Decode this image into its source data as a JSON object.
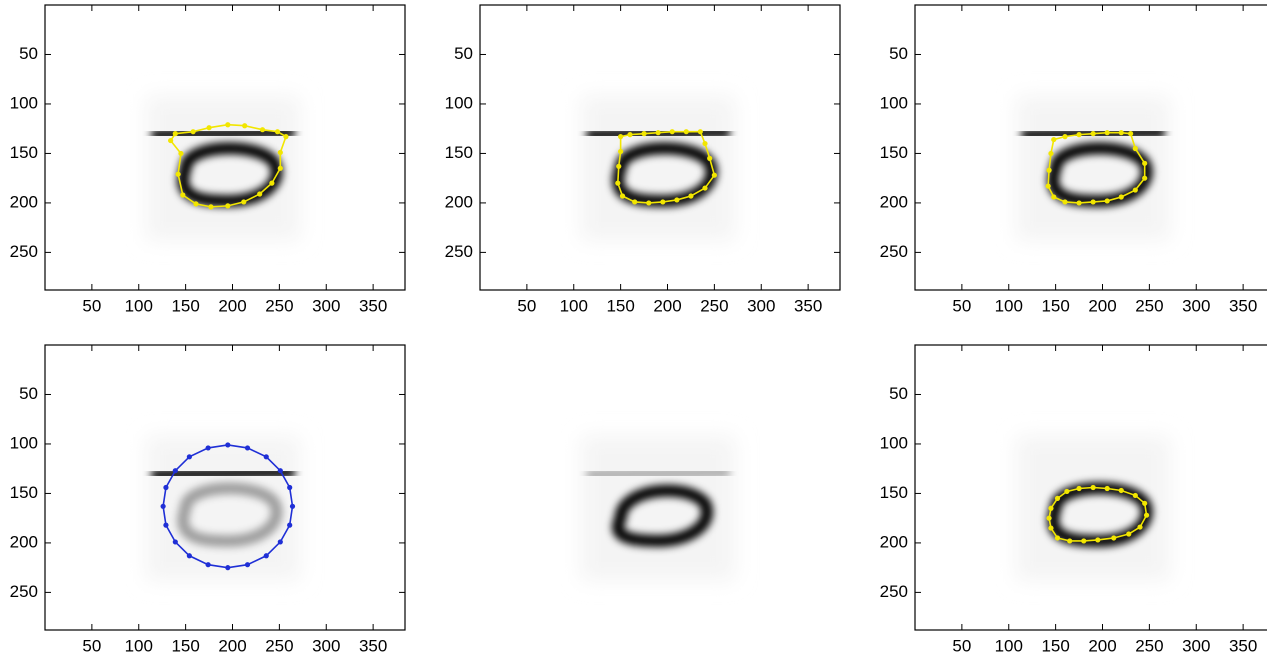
{
  "chart_data": [
    {
      "type": "line",
      "xlim": [
        0,
        384
      ],
      "ylim": [
        0,
        288
      ],
      "y_reversed": true,
      "xticks": [
        50,
        100,
        150,
        200,
        250,
        300,
        350
      ],
      "yticks": [
        50,
        100,
        150,
        200,
        250
      ],
      "series": [
        {
          "color": "#f2e600",
          "x": [
            139,
            158,
            175,
            195,
            213,
            232,
            248,
            257,
            251,
            251,
            242,
            229,
            212,
            195,
            177,
            161,
            147,
            142,
            145,
            134
          ],
          "values": [
            130,
            128,
            124,
            121,
            122,
            126,
            128,
            133,
            149,
            165,
            180,
            191,
            199,
            203,
            204,
            201,
            192,
            171,
            150,
            137
          ]
        }
      ]
    },
    {
      "type": "line",
      "xlim": [
        0,
        384
      ],
      "ylim": [
        0,
        288
      ],
      "y_reversed": true,
      "xticks": [
        50,
        100,
        150,
        200,
        250,
        300,
        350
      ],
      "yticks": [
        50,
        100,
        150,
        200,
        250
      ],
      "series": [
        {
          "color": "#f2e600",
          "x": [
            150,
            160,
            175,
            190,
            205,
            220,
            235,
            240,
            245,
            250,
            240,
            225,
            210,
            195,
            180,
            165,
            152,
            147,
            148,
            150
          ],
          "values": [
            133,
            131,
            130,
            129,
            128,
            128,
            128,
            140,
            155,
            172,
            185,
            193,
            197,
            199,
            200,
            199,
            193,
            180,
            163,
            148
          ]
        }
      ]
    },
    {
      "type": "line",
      "xlim": [
        0,
        384
      ],
      "ylim": [
        0,
        288
      ],
      "y_reversed": true,
      "xticks": [
        50,
        100,
        150,
        200,
        250,
        300,
        350
      ],
      "yticks": [
        50,
        100,
        150,
        200,
        250
      ],
      "series": [
        {
          "color": "#f2e600",
          "x": [
            148,
            160,
            175,
            190,
            205,
            220,
            230,
            235,
            245,
            245,
            235,
            220,
            205,
            190,
            175,
            160,
            148,
            142,
            143,
            145
          ],
          "values": [
            136,
            133,
            131,
            130,
            129,
            129,
            130,
            145,
            160,
            175,
            187,
            194,
            198,
            199,
            200,
            199,
            194,
            183,
            167,
            150
          ]
        }
      ]
    },
    {
      "type": "line",
      "xlim": [
        0,
        384
      ],
      "ylim": [
        0,
        288
      ],
      "y_reversed": true,
      "xticks": [
        50,
        100,
        150,
        200,
        250,
        300,
        350
      ],
      "yticks": [
        50,
        100,
        150,
        200,
        250
      ],
      "series": [
        {
          "color": "#1f2fd6",
          "x": [
            264,
            261,
            251,
            236,
            216,
            195,
            174,
            154,
            139,
            129,
            126,
            129,
            139,
            154,
            174,
            195,
            216,
            236,
            251,
            261
          ],
          "values": [
            163,
            182,
            199,
            213,
            222,
            225,
            222,
            213,
            199,
            182,
            163,
            144,
            127,
            113,
            104,
            101,
            104,
            113,
            127,
            144
          ]
        }
      ]
    },
    {
      "type": "line",
      "xlim": [
        0,
        384
      ],
      "ylim": [
        0,
        288
      ],
      "y_reversed": true,
      "xticks": [
        50,
        100,
        150,
        200,
        250,
        300,
        350
      ],
      "yticks": [
        50,
        100,
        150,
        200,
        250
      ],
      "series": [
        {
          "color": "#f2e600",
          "x": [
            145,
            152,
            162,
            175,
            190,
            205,
            220,
            235,
            245,
            247,
            240,
            228,
            212,
            195,
            180,
            165,
            152,
            145,
            143
          ],
          "values": [
            165,
            155,
            148,
            145,
            144,
            145,
            147,
            152,
            160,
            172,
            184,
            191,
            195,
            197,
            198,
            198,
            195,
            185,
            175
          ]
        }
      ]
    }
  ]
}
